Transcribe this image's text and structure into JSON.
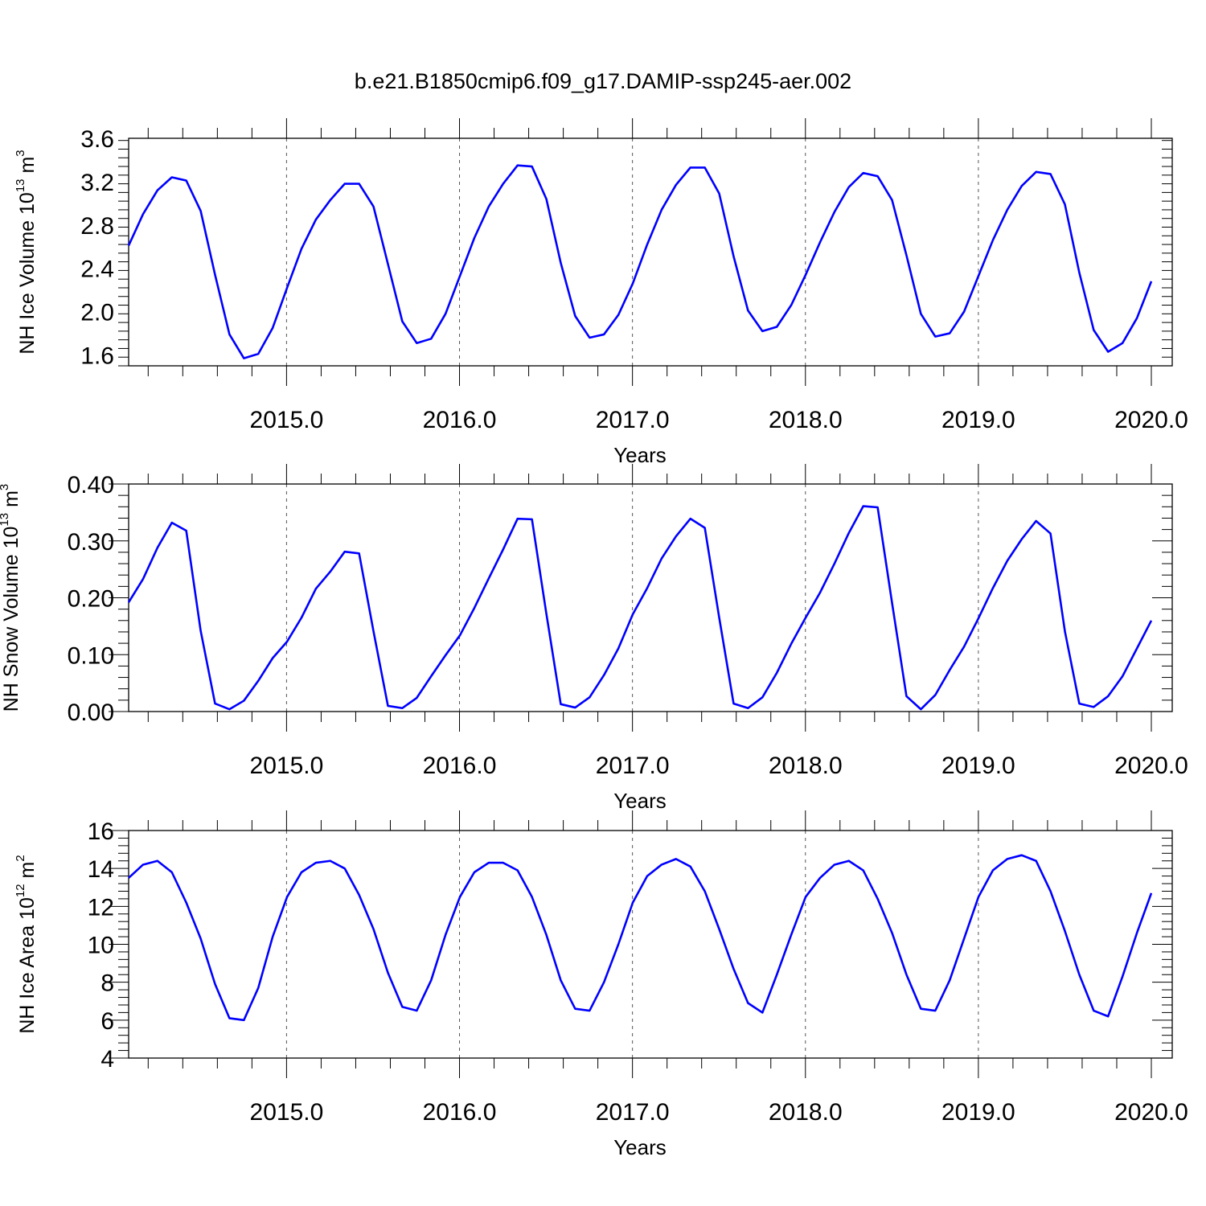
{
  "figure": {
    "title": "b.e21.B1850cmip6.f09_g17.DAMIP-ssp245-aer.002",
    "line_color": "#0000ff"
  },
  "chart_data": [
    {
      "type": "line",
      "ylabel": "NH Ice Volume 10",
      "ylabel_exp": "13",
      "ylabel_unit": "m",
      "ylabel_unit_exp": "3",
      "xlabel": "Years",
      "xlim": [
        2014.087,
        2020.0
      ],
      "ylim": [
        1.5,
        3.6
      ],
      "yticks": [
        1.6,
        2.0,
        2.4,
        2.8,
        3.2,
        3.6
      ],
      "ytick_labels": [
        "1.6",
        "2.0",
        "2.4",
        "2.8",
        "3.2",
        "3.6"
      ],
      "xticks": [
        2015,
        2016,
        2017,
        2018,
        2019,
        2020
      ],
      "xtick_labels": [
        "2015.0",
        "2016.0",
        "2017.0",
        "2018.0",
        "2019.0",
        "2020.0"
      ],
      "grid": "vertical-dashed",
      "series": [
        {
          "values": [
            2.61,
            2.9,
            3.12,
            3.24,
            3.21,
            2.93,
            2.34,
            1.79,
            1.57,
            1.61,
            1.85,
            2.22,
            2.58,
            2.85,
            3.03,
            3.18,
            3.18,
            2.97,
            2.44,
            1.91,
            1.71,
            1.75,
            1.98,
            2.33,
            2.68,
            2.97,
            3.18,
            3.35,
            3.34,
            3.04,
            2.45,
            1.96,
            1.76,
            1.79,
            1.97,
            2.26,
            2.62,
            2.94,
            3.17,
            3.33,
            3.33,
            3.09,
            2.51,
            2.01,
            1.82,
            1.86,
            2.06,
            2.34,
            2.64,
            2.92,
            3.15,
            3.28,
            3.25,
            3.03,
            2.52,
            1.98,
            1.77,
            1.8,
            2.0,
            2.33,
            2.66,
            2.94,
            3.16,
            3.29,
            3.27,
            2.99,
            2.36,
            1.83,
            1.63,
            1.71,
            1.94,
            2.28
          ]
        }
      ]
    },
    {
      "type": "line",
      "ylabel": "NH Snow Volume 10",
      "ylabel_exp": "13",
      "ylabel_unit": "m",
      "ylabel_unit_exp": "3",
      "xlabel": "Years",
      "xlim": [
        2014.087,
        2020.0
      ],
      "ylim": [
        0.0,
        0.4
      ],
      "yticks": [
        0.0,
        0.1,
        0.2,
        0.3,
        0.4
      ],
      "ytick_labels": [
        "0.00",
        "0.10",
        "0.20",
        "0.30",
        "0.40"
      ],
      "xticks": [
        2015,
        2016,
        2017,
        2018,
        2019,
        2020
      ],
      "xtick_labels": [
        "2015.0",
        "2016.0",
        "2017.0",
        "2018.0",
        "2019.0",
        "2020.0"
      ],
      "grid": "vertical-dashed",
      "series": [
        {
          "values": [
            0.192,
            0.233,
            0.288,
            0.332,
            0.318,
            0.142,
            0.014,
            0.004,
            0.019,
            0.054,
            0.094,
            0.123,
            0.165,
            0.216,
            0.246,
            0.281,
            0.278,
            0.141,
            0.01,
            0.006,
            0.024,
            0.062,
            0.099,
            0.134,
            0.182,
            0.234,
            0.285,
            0.339,
            0.338,
            0.172,
            0.013,
            0.007,
            0.025,
            0.064,
            0.111,
            0.171,
            0.217,
            0.269,
            0.308,
            0.339,
            0.323,
            0.165,
            0.014,
            0.006,
            0.025,
            0.068,
            0.119,
            0.165,
            0.209,
            0.26,
            0.314,
            0.361,
            0.359,
            0.191,
            0.027,
            0.004,
            0.029,
            0.073,
            0.114,
            0.164,
            0.217,
            0.265,
            0.303,
            0.335,
            0.313,
            0.141,
            0.014,
            0.008,
            0.027,
            0.062,
            0.111,
            0.16
          ]
        }
      ]
    },
    {
      "type": "line",
      "ylabel": "NH Ice Area 10",
      "ylabel_exp": "12",
      "ylabel_unit": "m",
      "ylabel_unit_exp": "2",
      "xlabel": "Years",
      "xlim": [
        2014.087,
        2020.0
      ],
      "ylim": [
        4,
        16
      ],
      "yticks": [
        4,
        6,
        8,
        10,
        12,
        14,
        16
      ],
      "ytick_labels": [
        "4",
        "6",
        "8",
        "10",
        "12",
        "14",
        "16"
      ],
      "xticks": [
        2015,
        2016,
        2017,
        2018,
        2019,
        2020
      ],
      "xtick_labels": [
        "2015.0",
        "2016.0",
        "2017.0",
        "2018.0",
        "2019.0",
        "2020.0"
      ],
      "grid": "vertical-dashed",
      "series": [
        {
          "values": [
            13.5,
            14.2,
            14.4,
            13.8,
            12.2,
            10.3,
            7.9,
            6.1,
            6.0,
            7.7,
            10.4,
            12.5,
            13.8,
            14.3,
            14.4,
            14.0,
            12.6,
            10.8,
            8.5,
            6.7,
            6.5,
            8.1,
            10.5,
            12.5,
            13.8,
            14.3,
            14.3,
            13.9,
            12.5,
            10.5,
            8.1,
            6.6,
            6.5,
            8.0,
            10.0,
            12.2,
            13.6,
            14.2,
            14.5,
            14.1,
            12.8,
            10.8,
            8.7,
            6.9,
            6.4,
            8.4,
            10.5,
            12.5,
            13.5,
            14.2,
            14.4,
            13.9,
            12.4,
            10.6,
            8.4,
            6.6,
            6.5,
            8.1,
            10.3,
            12.5,
            13.9,
            14.5,
            14.7,
            14.4,
            12.8,
            10.7,
            8.4,
            6.5,
            6.2,
            8.3,
            10.6,
            12.7
          ]
        }
      ]
    }
  ]
}
